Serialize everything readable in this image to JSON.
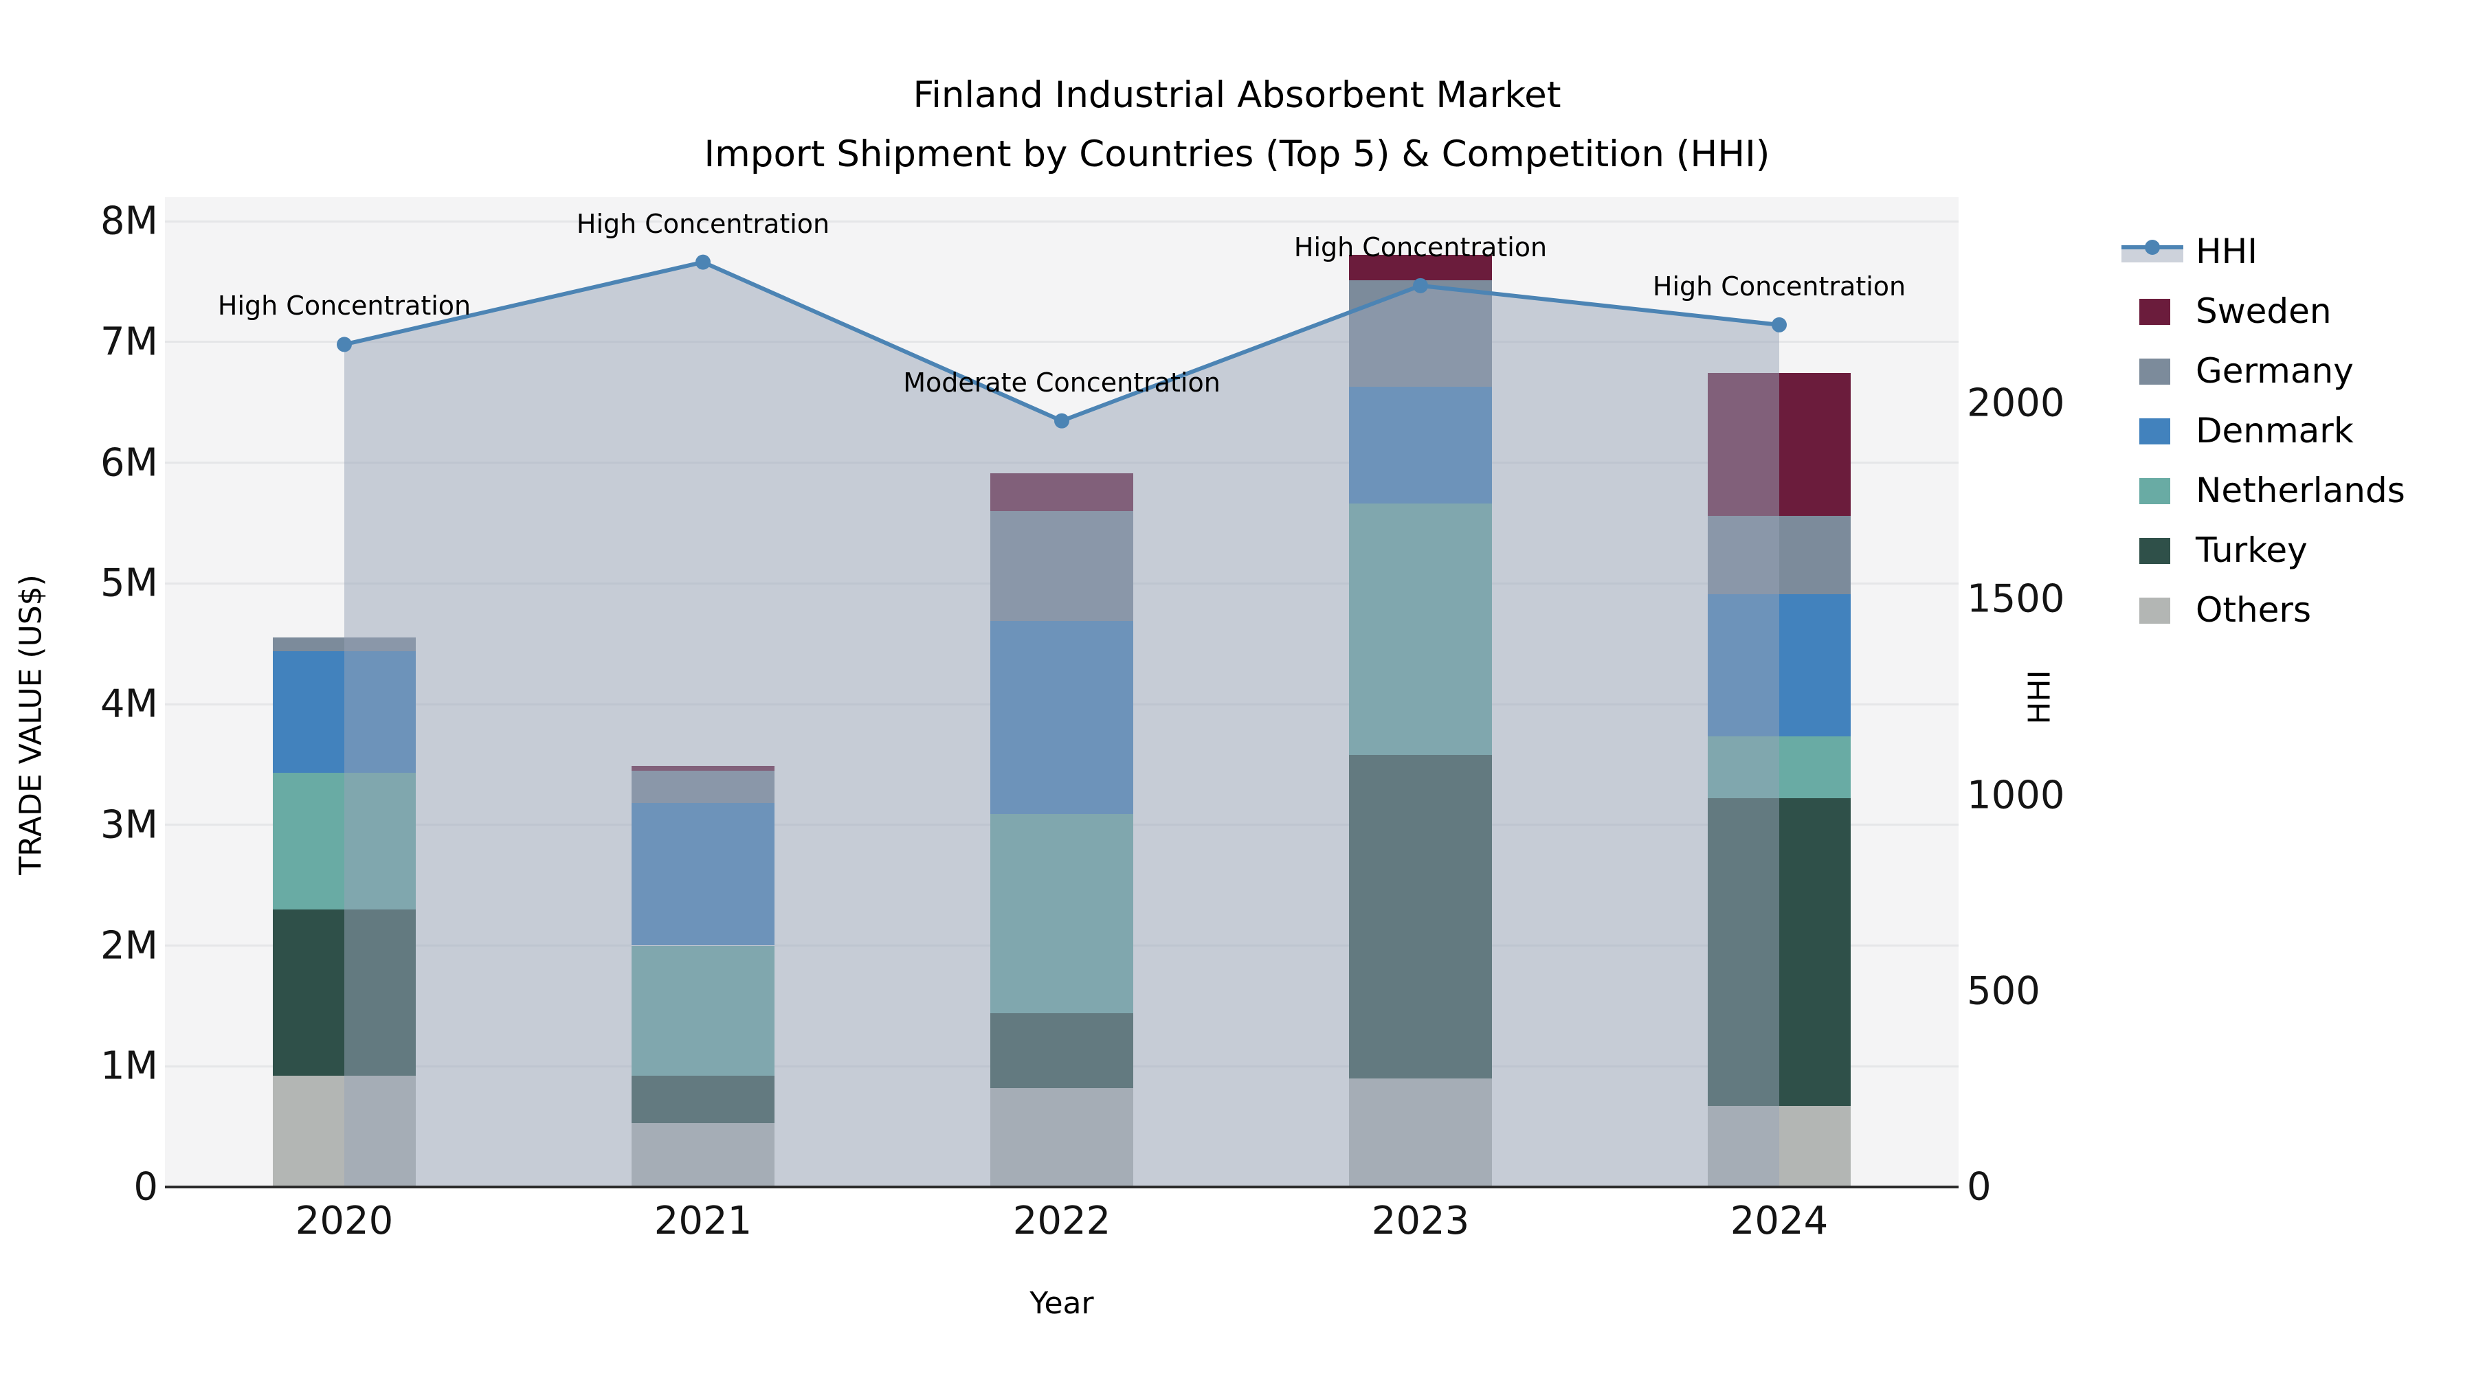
{
  "figure": {
    "title_line1": "Finland Industrial Absorbent Market",
    "title_line2": "Import Shipment by Countries (Top 5) & Competition (HHI)"
  },
  "chart_data": {
    "type": "bar",
    "subtype": "stacked bars with HHI line + shaded area overlay",
    "title": "Finland Industrial Absorbent Market",
    "subtitle": "Import Shipment by Countries (Top 5) & Competition (HHI)",
    "xlabel": "Year",
    "ylabel_left": "TRADE VALUE (US$)",
    "ylabel_right": "HHI",
    "categories": [
      "2020",
      "2021",
      "2022",
      "2023",
      "2024"
    ],
    "values_unit": "million US$",
    "series": [
      {
        "name": "Sweden",
        "color": "#6b1c3c",
        "values": [
          0.0,
          0.04,
          0.31,
          0.21,
          1.18
        ]
      },
      {
        "name": "Germany",
        "color": "#7c8b9b",
        "values": [
          0.11,
          0.27,
          0.91,
          0.88,
          0.65
        ]
      },
      {
        "name": "Denmark",
        "color": "#4282bd",
        "values": [
          1.01,
          1.18,
          1.6,
          0.97,
          1.18
        ]
      },
      {
        "name": "Netherlands",
        "color": "#69aba4",
        "values": [
          1.13,
          1.08,
          1.65,
          2.08,
          0.51
        ]
      },
      {
        "name": "Turkey",
        "color": "#2f5049",
        "values": [
          1.38,
          0.39,
          0.62,
          2.68,
          2.55
        ]
      },
      {
        "name": "Others",
        "color": "#b3b6b4",
        "values": [
          0.92,
          0.53,
          0.82,
          0.9,
          0.67
        ]
      }
    ],
    "bar_totals_musd": [
      4.55,
      3.49,
      5.91,
      7.72,
      6.74
    ],
    "hhi": {
      "name": "HHI",
      "line_color": "#4c84b4",
      "area_fill_color": "rgba(152,163,184,0.5)",
      "values": [
        2150,
        2360,
        1955,
        2300,
        2200
      ],
      "annotations": [
        "High Concentration",
        "High Concentration",
        "Moderate Concentration",
        "High Concentration",
        "High Concentration"
      ]
    },
    "axes": {
      "left": {
        "tick_labels": [
          "0",
          "1M",
          "2M",
          "3M",
          "4M",
          "5M",
          "6M",
          "7M",
          "8M"
        ],
        "range_musd": [
          0,
          8.2
        ],
        "grid": true
      },
      "right": {
        "tick_labels": [
          "0",
          "500",
          "1000",
          "1500",
          "2000"
        ],
        "tick_values": [
          0,
          500,
          1000,
          1500,
          2000
        ],
        "range": [
          0,
          2525
        ]
      }
    },
    "legend": {
      "position": "right",
      "entries": [
        "HHI",
        "Sweden",
        "Germany",
        "Denmark",
        "Netherlands",
        "Turkey",
        "Others"
      ]
    }
  }
}
